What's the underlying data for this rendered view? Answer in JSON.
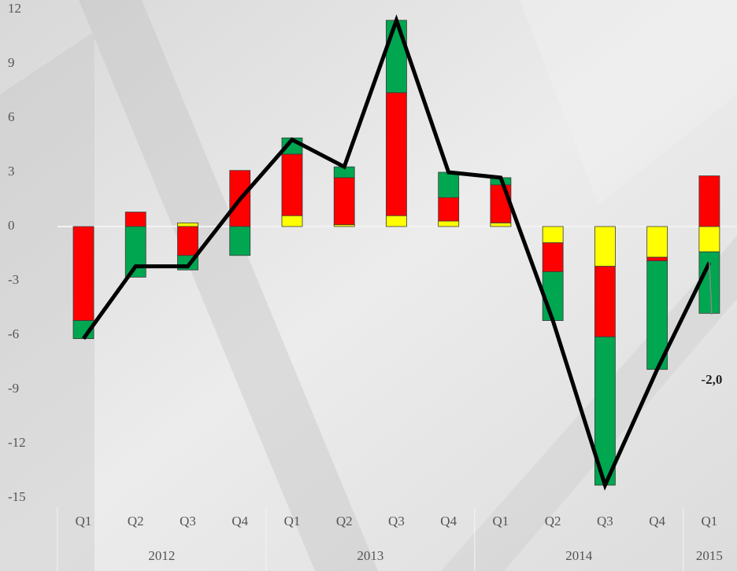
{
  "chart_data": {
    "type": "bar",
    "stacked": true,
    "categories": [
      "Q1",
      "Q2",
      "Q3",
      "Q4",
      "Q1",
      "Q2",
      "Q3",
      "Q4",
      "Q1",
      "Q2",
      "Q3",
      "Q4",
      "Q1"
    ],
    "year_labels": [
      "2012",
      null,
      null,
      null,
      "2013",
      null,
      null,
      null,
      "2014",
      null,
      null,
      null,
      "2015"
    ],
    "series": [
      {
        "color": "#ffff00",
        "values": [
          0,
          0,
          0.2,
          0,
          0.6,
          0.1,
          0.6,
          0.3,
          0.2,
          -0.9,
          -2.2,
          -1.7,
          -1.4
        ]
      },
      {
        "color": "#ff0000",
        "values": [
          -5.2,
          0.8,
          -1.6,
          3.1,
          3.4,
          2.6,
          6.8,
          1.3,
          2.1,
          -1.6,
          -3.9,
          -0.2,
          2.8
        ]
      },
      {
        "color": "#00a650",
        "values": [
          -1.0,
          -2.8,
          -0.8,
          -1.6,
          0.9,
          0.6,
          4.0,
          1.4,
          0.4,
          -2.7,
          -8.2,
          -6.0,
          -3.4
        ]
      },
      {
        "type": "line",
        "color": "#000000",
        "values": [
          -6.2,
          -2.2,
          -2.2,
          1.5,
          4.8,
          3.3,
          11.4,
          3.0,
          2.7,
          -5.2,
          -14.3,
          -7.9,
          -2.0
        ],
        "value_labels": [
          null,
          null,
          null,
          null,
          null,
          null,
          null,
          null,
          null,
          null,
          null,
          null,
          "-2,0"
        ]
      }
    ],
    "ylim": [
      -15,
      12
    ],
    "yticks": [
      -15,
      -12,
      -9,
      -6,
      -3,
      0,
      3,
      6,
      9,
      12
    ]
  }
}
